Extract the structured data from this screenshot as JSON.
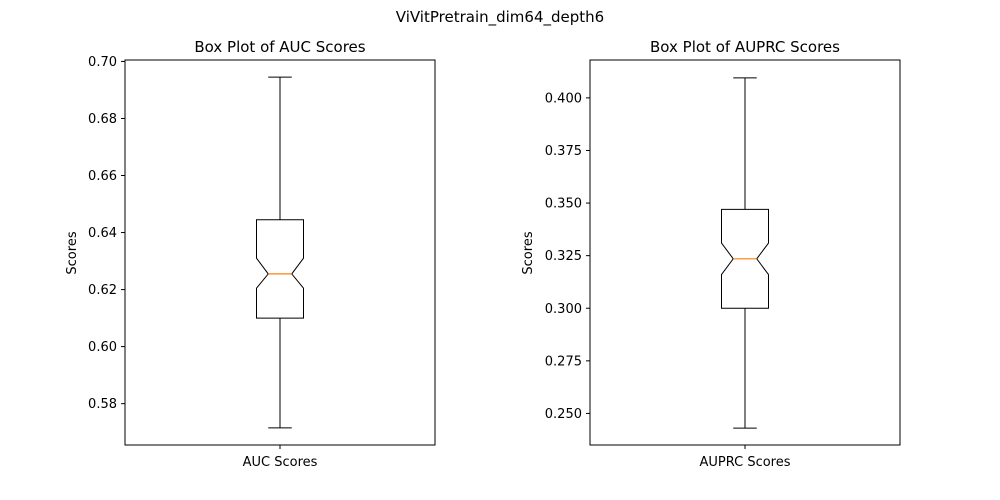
{
  "figure": {
    "suptitle": "ViVitPretrain_dim64_depth6"
  },
  "chart_data": [
    {
      "type": "box",
      "title": "Box Plot of AUC Scores",
      "xlabel": "",
      "ylabel": "Scores",
      "categories": [
        "AUC Scores"
      ],
      "ylim": [
        0.5655,
        0.7005
      ],
      "yticks": [
        0.58,
        0.6,
        0.62,
        0.64,
        0.66,
        0.68,
        0.7
      ],
      "ytick_labels": [
        "0.58",
        "0.60",
        "0.62",
        "0.64",
        "0.66",
        "0.68",
        "0.70"
      ],
      "box": {
        "whisker_low": 0.5715,
        "q1": 0.61,
        "median": 0.6255,
        "q3": 0.6445,
        "whisker_high": 0.6945,
        "notch_low": 0.6205,
        "notch_high": 0.631
      },
      "notched": true,
      "grid": false,
      "colors": {
        "box": "#000000",
        "median": "#ff7f0e"
      }
    },
    {
      "type": "box",
      "title": "Box Plot of AUPRC Scores",
      "xlabel": "",
      "ylabel": "Scores",
      "categories": [
        "AUPRC Scores"
      ],
      "ylim": [
        0.235,
        0.418
      ],
      "yticks": [
        0.25,
        0.275,
        0.3,
        0.325,
        0.35,
        0.375,
        0.4
      ],
      "ytick_labels": [
        "0.250",
        "0.275",
        "0.300",
        "0.325",
        "0.350",
        "0.375",
        "0.400"
      ],
      "box": {
        "whisker_low": 0.243,
        "q1": 0.3,
        "median": 0.3235,
        "q3": 0.347,
        "whisker_high": 0.4095,
        "notch_low": 0.316,
        "notch_high": 0.331
      },
      "notched": true,
      "grid": false,
      "colors": {
        "box": "#000000",
        "median": "#ff7f0e"
      }
    }
  ]
}
